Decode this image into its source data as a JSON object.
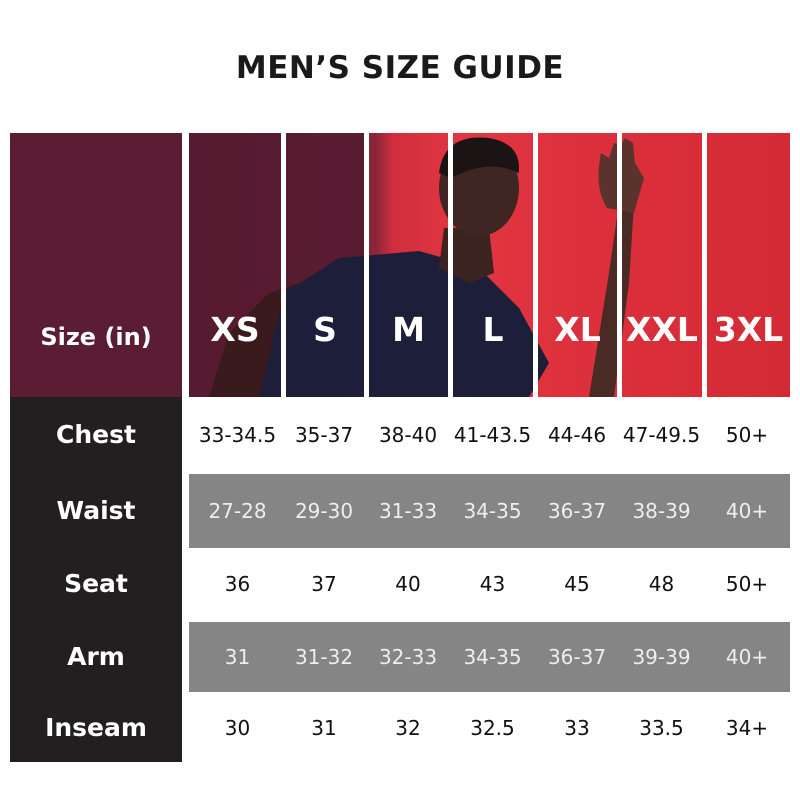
{
  "title": "MEN’S SIZE GUIDE",
  "header_label": "Size (in)",
  "sizes": [
    "XS",
    "S",
    "M",
    "L",
    "XL",
    "XXL",
    "3XL"
  ],
  "colors": {
    "maroon": "#5a1d33",
    "red": "#d42a35",
    "label_column": "#231f20",
    "stripe": "#858585"
  },
  "rows": [
    {
      "label": "Chest",
      "values": [
        "33-34.5",
        "35-37",
        "38-40",
        "41-43.5",
        "44-46",
        "47-49.5",
        "50+"
      ]
    },
    {
      "label": "Waist",
      "values": [
        "27-28",
        "29-30",
        "31-33",
        "34-35",
        "36-37",
        "38-39",
        "40+"
      ]
    },
    {
      "label": "Seat",
      "values": [
        "36",
        "37",
        "40",
        "43",
        "45",
        "48",
        "50+"
      ]
    },
    {
      "label": "Arm",
      "values": [
        "31",
        "31-32",
        "32-33",
        "34-35",
        "36-37",
        "39-39",
        "40+"
      ]
    },
    {
      "label": "Inseam",
      "values": [
        "30",
        "31",
        "32",
        "32.5",
        "33",
        "33.5",
        "34+"
      ]
    }
  ]
}
